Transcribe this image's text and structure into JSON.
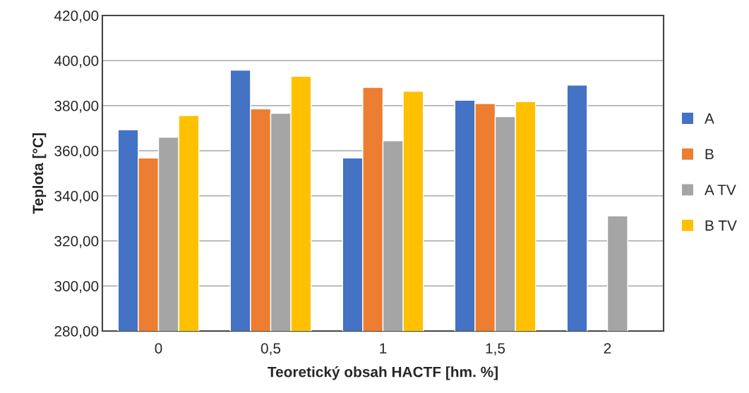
{
  "chart_data": {
    "type": "bar",
    "xlabel": "Teoretický obsah HACTF [hm. %]",
    "ylabel": "Teplota [°C]",
    "categories": [
      "0",
      "0,5",
      "1",
      "1,5",
      "2"
    ],
    "series": [
      {
        "name": "A",
        "color": "#4472c4",
        "values": [
          369.3,
          395.8,
          356.8,
          382.4,
          389.1
        ]
      },
      {
        "name": "B",
        "color": "#ed7d31",
        "values": [
          356.8,
          378.6,
          388.1,
          380.9,
          null
        ]
      },
      {
        "name": "A TV",
        "color": "#a5a5a5",
        "values": [
          366.0,
          376.6,
          364.4,
          375.1,
          331.1
        ]
      },
      {
        "name": "B TV",
        "color": "#ffc000",
        "values": [
          375.6,
          393.0,
          386.4,
          381.8,
          null
        ]
      }
    ],
    "ylim": [
      280,
      420
    ],
    "yticks": [
      {
        "value": 280,
        "label": "280,00"
      },
      {
        "value": 300,
        "label": "300,00"
      },
      {
        "value": 320,
        "label": "320,00"
      },
      {
        "value": 340,
        "label": "340,00"
      },
      {
        "value": 360,
        "label": "360,00"
      },
      {
        "value": 380,
        "label": "380,00"
      },
      {
        "value": 400,
        "label": "400,00"
      },
      {
        "value": 420,
        "label": "420,00"
      }
    ],
    "grid": "y",
    "legend": "right"
  }
}
